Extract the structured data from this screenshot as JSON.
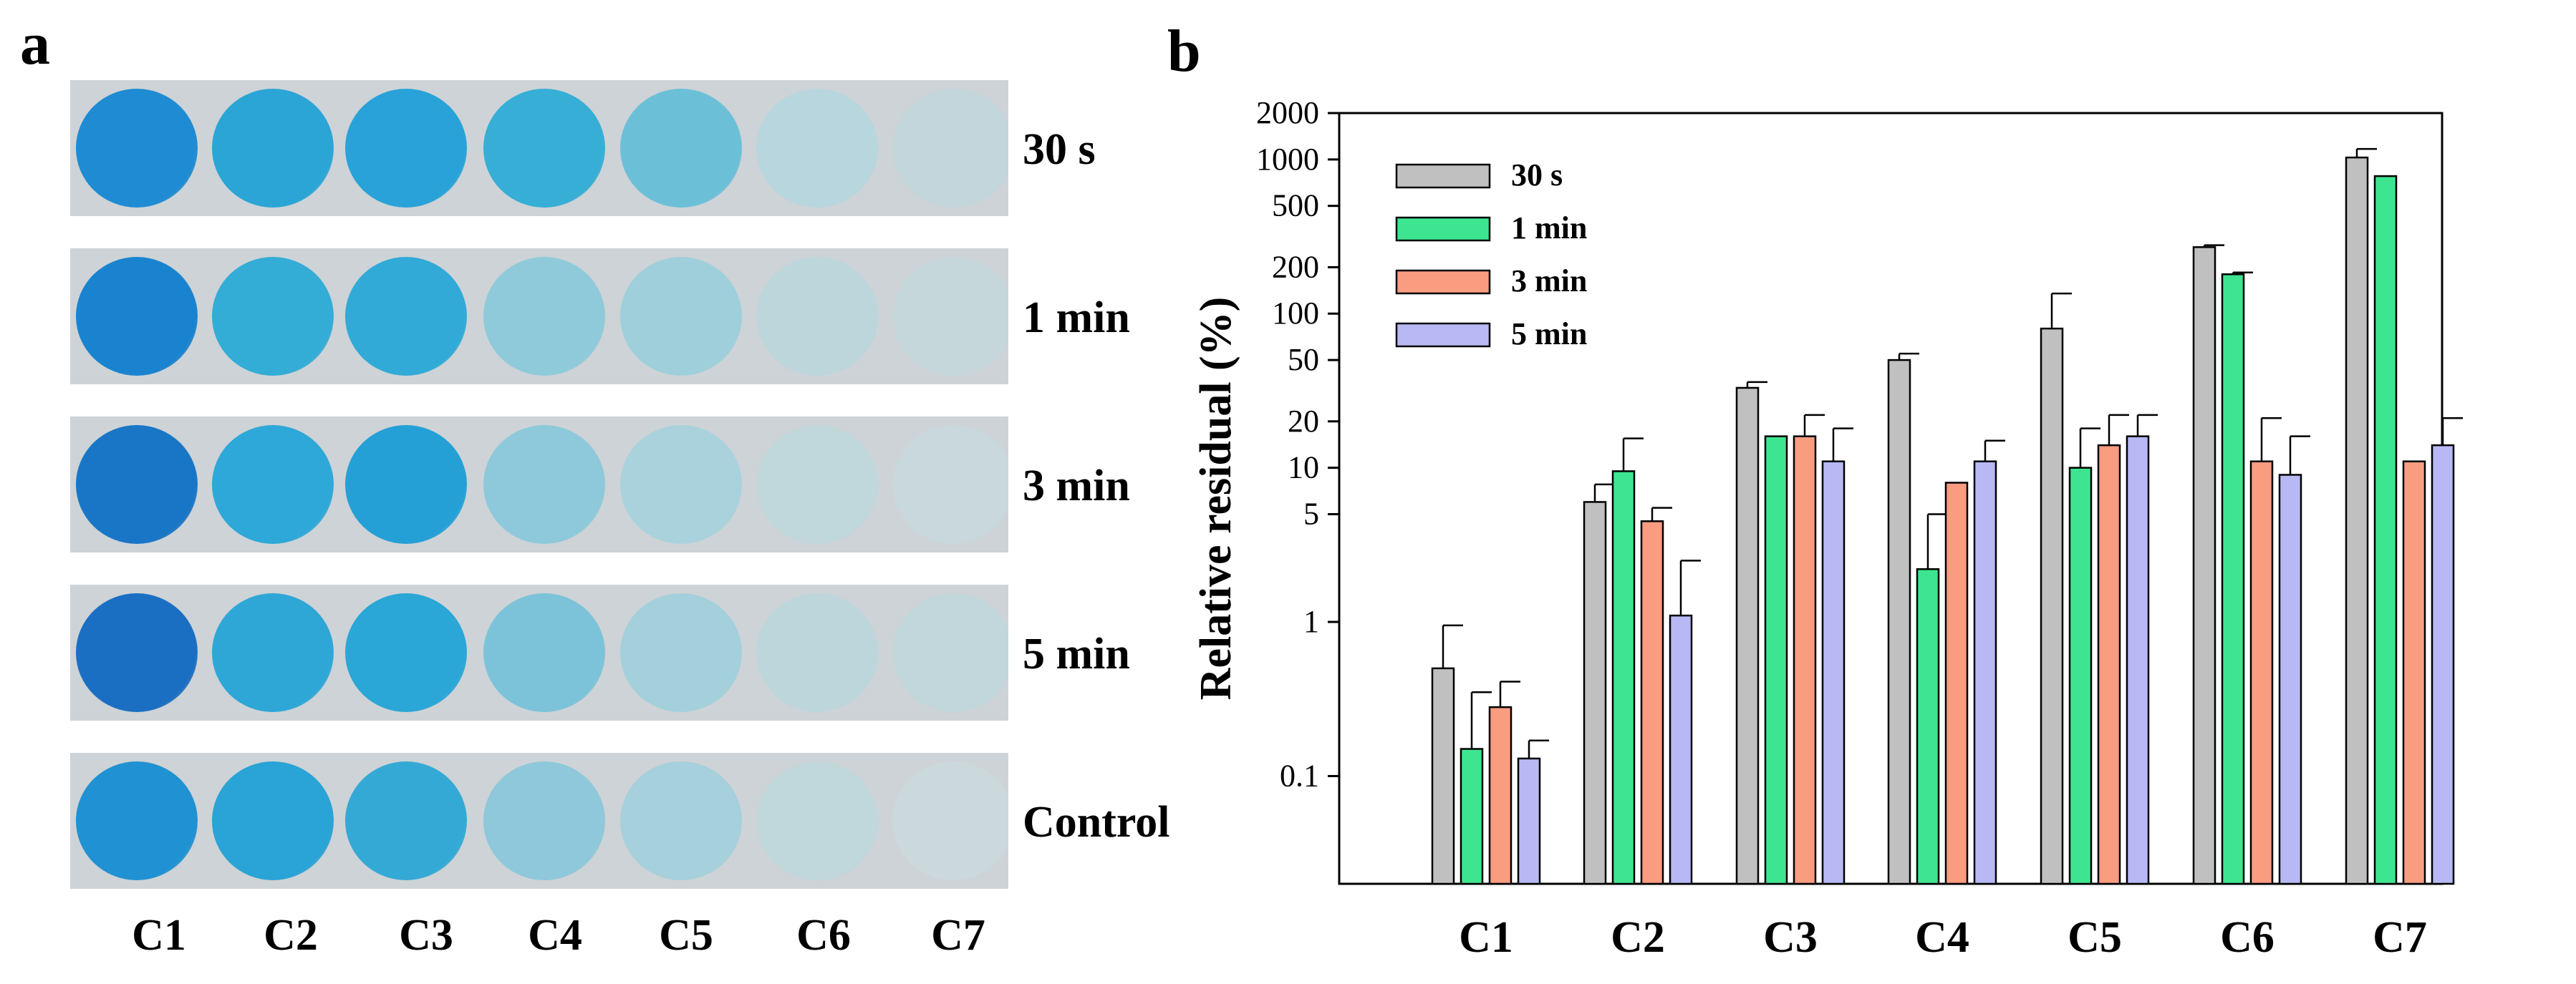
{
  "panel_a": {
    "letter": "a",
    "rows": [
      {
        "label": "30 s",
        "wells": [
          "#1f8bd3",
          "#2aa5d6",
          "#28a2d8",
          "#36aed6",
          "#6bc0d8",
          "#b7d6de",
          "#c3d6dc"
        ]
      },
      {
        "label": "1 min",
        "wells": [
          "#1a83cf",
          "#33acd6",
          "#31aad7",
          "#8fcadb",
          "#9fcfdb",
          "#bcd6dc",
          "#c6d7dc"
        ]
      },
      {
        "label": "3 min",
        "wells": [
          "#1976c6",
          "#2ea8d8",
          "#25a0d7",
          "#8dc9db",
          "#a9d2dc",
          "#c0d7dc",
          "#c9d8dc"
        ]
      },
      {
        "label": "5 min",
        "wells": [
          "#1b6fc2",
          "#2ea7d7",
          "#2aa6d7",
          "#7cc3d9",
          "#a3d0db",
          "#bdd6dc",
          "#c2d7dc"
        ]
      },
      {
        "label": "Control",
        "wells": [
          "#2091d2",
          "#2aa3d6",
          "#35a9d5",
          "#8ec8da",
          "#a6d0db",
          "#c0d7dc",
          "#cbd9dd"
        ]
      }
    ],
    "columns": [
      "C1",
      "C2",
      "C3",
      "C4",
      "C5",
      "C6",
      "C7"
    ]
  },
  "chart_data": {
    "panel_letter": "b",
    "type": "bar",
    "yscale": "log",
    "categories": [
      "C1",
      "C2",
      "C3",
      "C4",
      "C5",
      "C6",
      "C7"
    ],
    "series": [
      {
        "name": "30 s",
        "color": "#c0c0c0",
        "values": [
          0.5,
          6,
          33,
          50,
          80,
          270,
          1030
        ],
        "errors": [
          0.45,
          1.8,
          3,
          5,
          55,
          8,
          140
        ]
      },
      {
        "name": "1 min",
        "color": "#3ee590",
        "values": [
          0.15,
          9.5,
          16,
          2.2,
          10,
          180,
          780
        ],
        "errors": [
          0.2,
          6,
          0,
          2.8,
          8,
          5,
          0
        ]
      },
      {
        "name": "3 min",
        "color": "#f99c80",
        "values": [
          0.28,
          4.5,
          16,
          8,
          14,
          11,
          11
        ],
        "errors": [
          0.13,
          1,
          6,
          0,
          8,
          10,
          0
        ]
      },
      {
        "name": "5 min",
        "color": "#b7b8f4",
        "values": [
          0.13,
          1.1,
          11,
          11,
          16,
          9,
          14
        ],
        "errors": [
          0.04,
          1.4,
          7,
          4,
          6,
          7,
          7
        ]
      }
    ],
    "ylabel": "Relative residual (%)",
    "xlabel": "",
    "ylim": [
      0.02,
      2000
    ],
    "yticks": [
      {
        "value": 0.1,
        "label": "0.1"
      },
      {
        "value": 1,
        "label": "1"
      },
      {
        "value": 5,
        "label": "5"
      },
      {
        "value": 10,
        "label": "10"
      },
      {
        "value": 20,
        "label": "20"
      },
      {
        "value": 50,
        "label": "50"
      },
      {
        "value": 100,
        "label": "100"
      },
      {
        "value": 200,
        "label": "200"
      },
      {
        "value": 500,
        "label": "500"
      },
      {
        "value": 1000,
        "label": "1000"
      },
      {
        "value": 2000,
        "label": "2000"
      }
    ],
    "legend_position": "top-left",
    "grid": false
  }
}
